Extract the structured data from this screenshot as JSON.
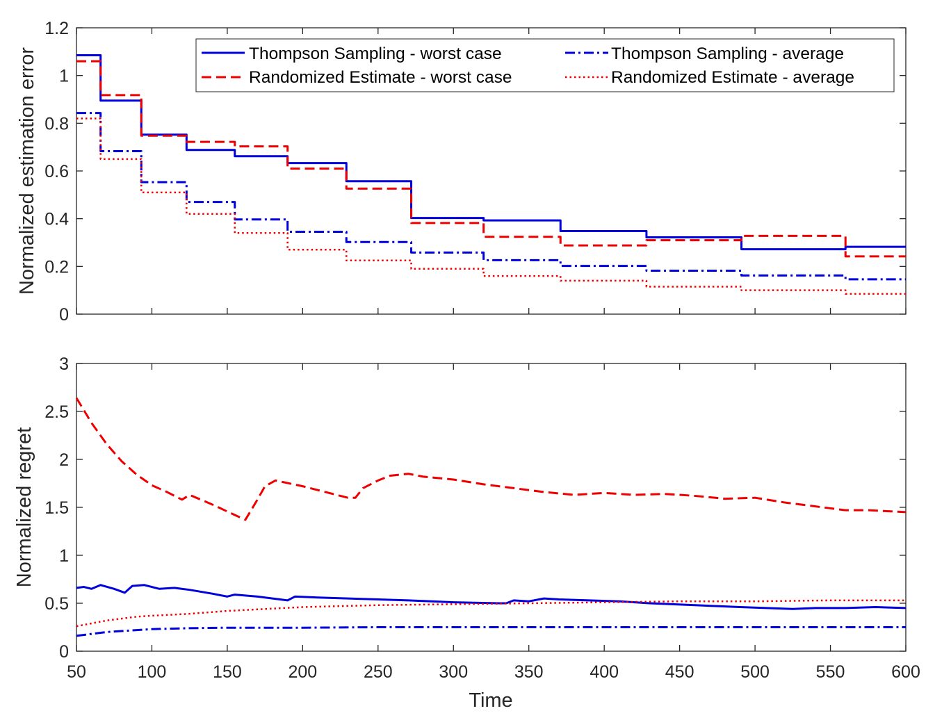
{
  "chart_data": [
    {
      "type": "line",
      "interpolation": "step",
      "title": "",
      "xlabel": "",
      "ylabel": "Normalized estimation error",
      "xlim": [
        50,
        600
      ],
      "ylim": [
        0,
        1.2
      ],
      "xticks": [
        "",
        "",
        "",
        "",
        "",
        "",
        "",
        "",
        "",
        "",
        "",
        ""
      ],
      "yticks": [
        "0",
        "0.2",
        "0.4",
        "0.6",
        "0.8",
        "1",
        "1.2"
      ],
      "legend": {
        "placement": "top-right",
        "entries": [
          "Thompson Sampling - worst case",
          "Thompson Sampling - average",
          "Randomized Estimate - worst case",
          "Randomized Estimate - average"
        ]
      },
      "series": [
        {
          "name": "Thompson Sampling - worst case",
          "color": "#0000dd",
          "style": "solid",
          "x": [
            50,
            66,
            93,
            123,
            155,
            190,
            229,
            272,
            320,
            371,
            428,
            491,
            560,
            600
          ],
          "values": [
            1.085,
            0.895,
            0.752,
            0.688,
            0.662,
            0.633,
            0.557,
            0.403,
            0.393,
            0.348,
            0.322,
            0.272,
            0.282,
            0.282
          ]
        },
        {
          "name": "Thompson Sampling - average",
          "color": "#0000dd",
          "style": "dashdot",
          "x": [
            50,
            66,
            93,
            123,
            155,
            190,
            229,
            272,
            320,
            371,
            428,
            491,
            560,
            600
          ],
          "values": [
            0.843,
            0.683,
            0.553,
            0.47,
            0.397,
            0.345,
            0.302,
            0.258,
            0.226,
            0.202,
            0.182,
            0.162,
            0.146,
            0.146
          ]
        },
        {
          "name": "Randomized Estimate - worst case",
          "color": "#ee0000",
          "style": "dashed",
          "x": [
            50,
            66,
            93,
            123,
            155,
            190,
            229,
            272,
            320,
            371,
            428,
            491,
            560,
            600
          ],
          "values": [
            1.06,
            0.918,
            0.748,
            0.722,
            0.703,
            0.61,
            0.526,
            0.382,
            0.324,
            0.288,
            0.31,
            0.328,
            0.242,
            0.242
          ]
        },
        {
          "name": "Randomized Estimate - average",
          "color": "#ee0000",
          "style": "dotted",
          "x": [
            50,
            66,
            93,
            123,
            155,
            190,
            229,
            272,
            320,
            371,
            428,
            491,
            560,
            600
          ],
          "values": [
            0.82,
            0.65,
            0.51,
            0.42,
            0.34,
            0.27,
            0.225,
            0.19,
            0.16,
            0.14,
            0.115,
            0.1,
            0.085,
            0.085
          ]
        }
      ]
    },
    {
      "type": "line",
      "title": "",
      "xlabel": "Time",
      "ylabel": "Normalized regret",
      "xlim": [
        50,
        600
      ],
      "ylim": [
        0,
        3
      ],
      "xticks": [
        "50",
        "100",
        "150",
        "200",
        "250",
        "300",
        "350",
        "400",
        "450",
        "500",
        "550",
        "600"
      ],
      "yticks": [
        "0",
        "0.5",
        "1",
        "1.5",
        "2",
        "2.5",
        "3"
      ],
      "series": [
        {
          "name": "Randomized Estimate - worst case",
          "color": "#ee0000",
          "style": "dashed",
          "x": [
            50,
            60,
            70,
            80,
            90,
            100,
            110,
            120,
            125,
            140,
            155,
            162,
            170,
            175,
            182,
            200,
            215,
            230,
            235,
            240,
            250,
            258,
            270,
            280,
            300,
            320,
            340,
            360,
            380,
            400,
            420,
            440,
            460,
            480,
            500,
            520,
            540,
            560,
            575,
            600
          ],
          "values": [
            2.64,
            2.38,
            2.16,
            1.98,
            1.84,
            1.73,
            1.66,
            1.58,
            1.63,
            1.53,
            1.42,
            1.37,
            1.58,
            1.72,
            1.78,
            1.72,
            1.66,
            1.6,
            1.6,
            1.7,
            1.78,
            1.83,
            1.85,
            1.82,
            1.79,
            1.74,
            1.7,
            1.66,
            1.63,
            1.65,
            1.63,
            1.64,
            1.62,
            1.59,
            1.6,
            1.55,
            1.51,
            1.47,
            1.47,
            1.45
          ]
        },
        {
          "name": "Thompson Sampling - worst case",
          "color": "#0000dd",
          "style": "solid",
          "x": [
            50,
            55,
            60,
            66,
            75,
            82,
            87,
            95,
            105,
            115,
            125,
            140,
            150,
            155,
            170,
            180,
            190,
            195,
            210,
            230,
            250,
            270,
            300,
            330,
            335,
            340,
            350,
            360,
            370,
            390,
            410,
            430,
            460,
            490,
            525,
            540,
            560,
            580,
            600
          ],
          "values": [
            0.66,
            0.67,
            0.65,
            0.69,
            0.65,
            0.61,
            0.68,
            0.69,
            0.65,
            0.66,
            0.64,
            0.6,
            0.57,
            0.59,
            0.57,
            0.55,
            0.53,
            0.57,
            0.56,
            0.55,
            0.54,
            0.53,
            0.51,
            0.5,
            0.5,
            0.53,
            0.52,
            0.55,
            0.54,
            0.53,
            0.52,
            0.5,
            0.48,
            0.46,
            0.44,
            0.45,
            0.45,
            0.46,
            0.45
          ]
        },
        {
          "name": "Randomized Estimate - average",
          "color": "#ee0000",
          "style": "dotted",
          "x": [
            50,
            60,
            70,
            80,
            90,
            100,
            125,
            150,
            175,
            200,
            250,
            300,
            350,
            400,
            450,
            500,
            550,
            600
          ],
          "values": [
            0.26,
            0.29,
            0.32,
            0.34,
            0.36,
            0.37,
            0.39,
            0.42,
            0.44,
            0.46,
            0.48,
            0.49,
            0.5,
            0.51,
            0.52,
            0.52,
            0.53,
            0.53
          ]
        },
        {
          "name": "Thompson Sampling - average",
          "color": "#0000dd",
          "style": "dashdot",
          "x": [
            50,
            60,
            70,
            80,
            90,
            100,
            125,
            150,
            200,
            250,
            300,
            350,
            400,
            450,
            500,
            550,
            600
          ],
          "values": [
            0.16,
            0.18,
            0.2,
            0.21,
            0.22,
            0.23,
            0.24,
            0.245,
            0.245,
            0.25,
            0.25,
            0.25,
            0.25,
            0.25,
            0.25,
            0.25,
            0.25
          ]
        }
      ]
    }
  ]
}
